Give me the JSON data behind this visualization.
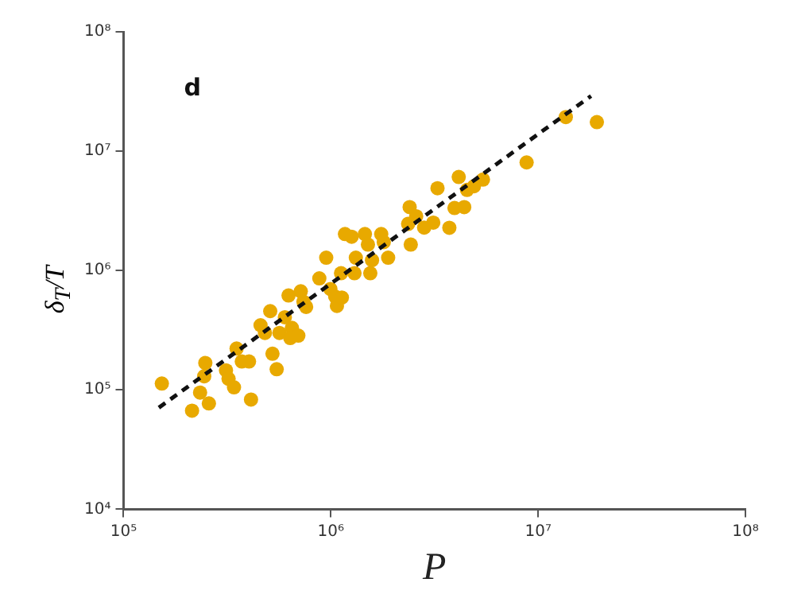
{
  "chart_data": {
    "type": "scatter",
    "xlabel": "P",
    "ylabel": "δ$_{T}$/T",
    "annotations": [
      "d"
    ],
    "log": "xy",
    "grid": false,
    "legend": false,
    "marker": "circle",
    "xlim": [
      100000,
      100000000
    ],
    "xticks": [
      {
        "value": 100000,
        "label": "10⁵"
      },
      {
        "value": 1000000,
        "label": "10⁶"
      },
      {
        "value": 10000000,
        "label": "10⁷"
      },
      {
        "value": 100000000,
        "label": "10⁸"
      }
    ],
    "ylim": [
      10000,
      100000000
    ],
    "yticks": [
      {
        "value": 10000,
        "label": "10⁴"
      },
      {
        "value": 100000,
        "label": "10⁵"
      },
      {
        "value": 1000000,
        "label": "10⁶"
      },
      {
        "value": 10000000,
        "label": "10⁷"
      },
      {
        "value": 100000000,
        "label": "10⁸"
      }
    ],
    "series": [
      {
        "color": "#e8a900",
        "x": [
          153000,
          214000,
          248000,
          245000,
          234000,
          258000,
          312000,
          321000,
          341000,
          412000,
          351000,
          372000,
          403000,
          458000,
          481000,
          510000,
          523000,
          548000,
          565000,
          600000,
          625000,
          649000,
          637000,
          697000,
          716000,
          738000,
          760000,
          880000,
          950000,
          995000,
          1050000,
          1070000,
          1130000,
          1120000,
          1170000,
          1260000,
          1320000,
          1300000,
          1460000,
          1510000,
          1550000,
          1580000,
          1750000,
          1800000,
          1890000,
          2400000,
          2360000,
          2430000,
          2580000,
          2820000,
          3270000,
          3120000,
          3730000,
          13600000,
          19200000,
          8800000,
          4140000,
          5420000,
          4540000,
          4400000,
          3950000,
          4900000
        ],
        "values": [
          113000,
          67000,
          168000,
          130000,
          95000,
          77000,
          146000,
          124000,
          105000,
          83000,
          222000,
          173000,
          173000,
          348000,
          300000,
          457000,
          201000,
          149000,
          300000,
          406000,
          618000,
          331000,
          272000,
          285000,
          670000,
          548000,
          496000,
          860000,
          1280000,
          700000,
          605000,
          505000,
          594000,
          950000,
          2020000,
          1920000,
          1280000,
          950000,
          2020000,
          1650000,
          950000,
          1220000,
          2020000,
          1730000,
          1280000,
          3400000,
          2460000,
          1650000,
          2850000,
          2290000,
          4890000,
          2520000,
          2280000,
          19300000,
          17500000,
          8050000,
          6080000,
          5780000,
          4740000,
          3400000,
          3340000,
          5080000
        ]
      },
      {
        "type": "line",
        "color": "#111111",
        "line_style": "dashed",
        "marker": "none",
        "x": [
          148000,
          18000000
        ],
        "values": [
          71000,
          29000000
        ]
      }
    ]
  }
}
